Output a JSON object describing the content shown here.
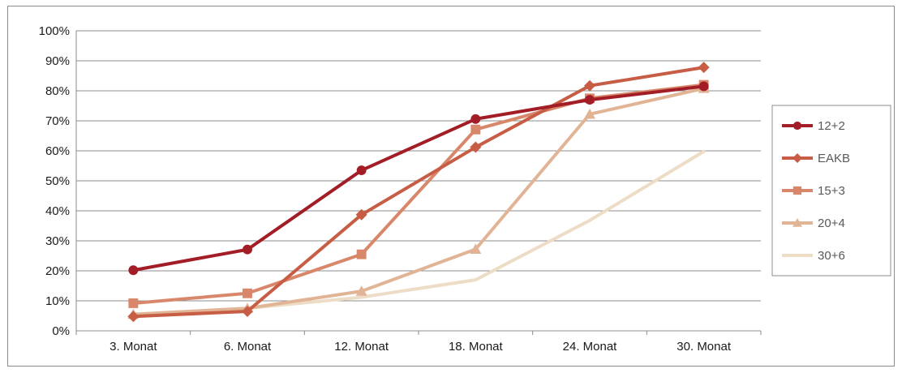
{
  "chart_data": {
    "type": "line",
    "title": "",
    "xlabel": "",
    "ylabel": "",
    "categories": [
      "3. Monat",
      "6. Monat",
      "12. Monat",
      "18. Monat",
      "24. Monat",
      "30. Monat"
    ],
    "y_ticks": [
      "0%",
      "10%",
      "20%",
      "30%",
      "40%",
      "50%",
      "60%",
      "70%",
      "80%",
      "90%",
      "100%"
    ],
    "ylim": [
      0,
      100
    ],
    "grid": true,
    "legend_position": "right",
    "series": [
      {
        "name": "12+2",
        "values": [
          20.2,
          27.1,
          53.5,
          70.6,
          77.0,
          81.5
        ],
        "color": "#a31d26",
        "marker": "circle"
      },
      {
        "name": "EAKB",
        "values": [
          4.8,
          6.5,
          38.7,
          61.2,
          81.7,
          87.8
        ],
        "color": "#c65d44",
        "marker": "diamond"
      },
      {
        "name": "15+3",
        "values": [
          9.2,
          12.5,
          25.5,
          67.1,
          77.5,
          82.0
        ],
        "color": "#d9876a",
        "marker": "square"
      },
      {
        "name": "20+4",
        "values": [
          5.5,
          7.5,
          13.2,
          27.2,
          72.2,
          80.8
        ],
        "color": "#e2b496",
        "marker": "triangle"
      },
      {
        "name": "30+6",
        "values": [
          5.5,
          7.5,
          11.2,
          17.0,
          36.8,
          59.8
        ],
        "color": "#eddcc6",
        "marker": "none"
      }
    ]
  }
}
